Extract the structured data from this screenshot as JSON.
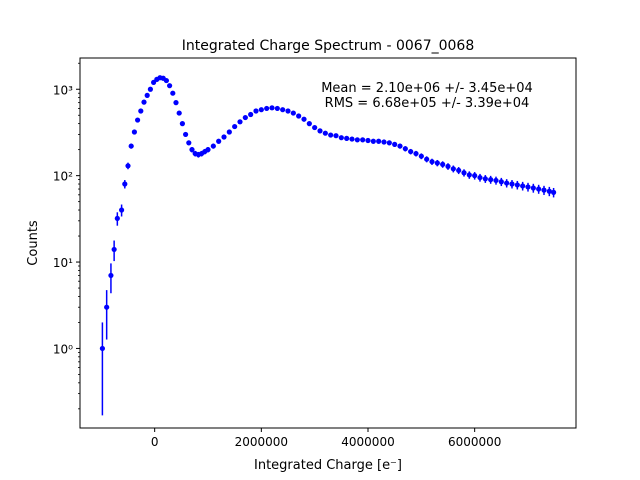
{
  "chart_data": {
    "type": "scatter",
    "title": "Integrated Charge Spectrum - 0067_0068",
    "xlabel": "Integrated Charge [e⁻]",
    "ylabel": "Counts",
    "xlim": [
      -1400000,
      7900000
    ],
    "ylim": [
      0.12,
      2300
    ],
    "yscale": "log",
    "grid": false,
    "legend": "none",
    "x_ticks": [
      {
        "value": 0,
        "label": "0"
      },
      {
        "value": 2000000,
        "label": "2000000"
      },
      {
        "value": 4000000,
        "label": "4000000"
      },
      {
        "value": 6000000,
        "label": "6000000"
      }
    ],
    "y_ticks": [
      {
        "value": 1,
        "label": "10⁰"
      },
      {
        "value": 10,
        "label": "10¹"
      },
      {
        "value": 100,
        "label": "10²"
      },
      {
        "value": 1000,
        "label": "10³"
      }
    ],
    "annotations": [
      "Mean = 2.10e+06 +/- 3.45e+04",
      "RMS = 6.68e+05 +/- 3.39e+04"
    ],
    "colors": {
      "marker": "#0000ff",
      "axes": "#000000"
    },
    "series": [
      {
        "x": [
          -980000,
          -900000,
          -820000,
          -760000,
          -700000,
          -620000,
          -560000,
          -500000,
          -440000,
          -380000,
          -320000,
          -260000,
          -200000,
          -140000,
          -80000,
          -20000,
          40000,
          100000,
          160000,
          220000,
          280000,
          340000,
          400000,
          460000,
          520000,
          580000,
          640000,
          700000,
          760000,
          820000,
          880000,
          940000,
          1000000,
          1100000,
          1200000,
          1300000,
          1400000,
          1500000,
          1600000,
          1700000,
          1800000,
          1900000,
          2000000,
          2100000,
          2200000,
          2300000,
          2400000,
          2500000,
          2600000,
          2700000,
          2800000,
          2900000,
          3000000,
          3100000,
          3200000,
          3300000,
          3400000,
          3500000,
          3600000,
          3700000,
          3800000,
          3900000,
          4000000,
          4100000,
          4200000,
          4300000,
          4400000,
          4500000,
          4600000,
          4700000,
          4800000,
          4900000,
          5000000,
          5100000,
          5200000,
          5300000,
          5400000,
          5500000,
          5600000,
          5700000,
          5800000,
          5900000,
          6000000,
          6100000,
          6200000,
          6300000,
          6400000,
          6500000,
          6600000,
          6700000,
          6800000,
          6900000,
          7000000,
          7100000,
          7200000,
          7300000,
          7400000,
          7480000
        ],
        "y": [
          1,
          3,
          7,
          14,
          32,
          40,
          80,
          130,
          220,
          320,
          440,
          560,
          710,
          850,
          1000,
          1200,
          1300,
          1360,
          1340,
          1260,
          1100,
          900,
          700,
          530,
          400,
          300,
          240,
          200,
          180,
          175,
          180,
          190,
          200,
          220,
          250,
          280,
          320,
          370,
          420,
          470,
          510,
          560,
          580,
          600,
          610,
          600,
          580,
          560,
          530,
          490,
          450,
          400,
          360,
          330,
          310,
          295,
          290,
          275,
          270,
          265,
          260,
          260,
          255,
          250,
          250,
          245,
          240,
          230,
          220,
          205,
          190,
          180,
          168,
          155,
          145,
          140,
          135,
          128,
          120,
          115,
          108,
          102,
          100,
          95,
          92,
          90,
          88,
          85,
          82,
          80,
          78,
          76,
          74,
          72,
          70,
          68,
          66,
          64
        ]
      }
    ]
  }
}
